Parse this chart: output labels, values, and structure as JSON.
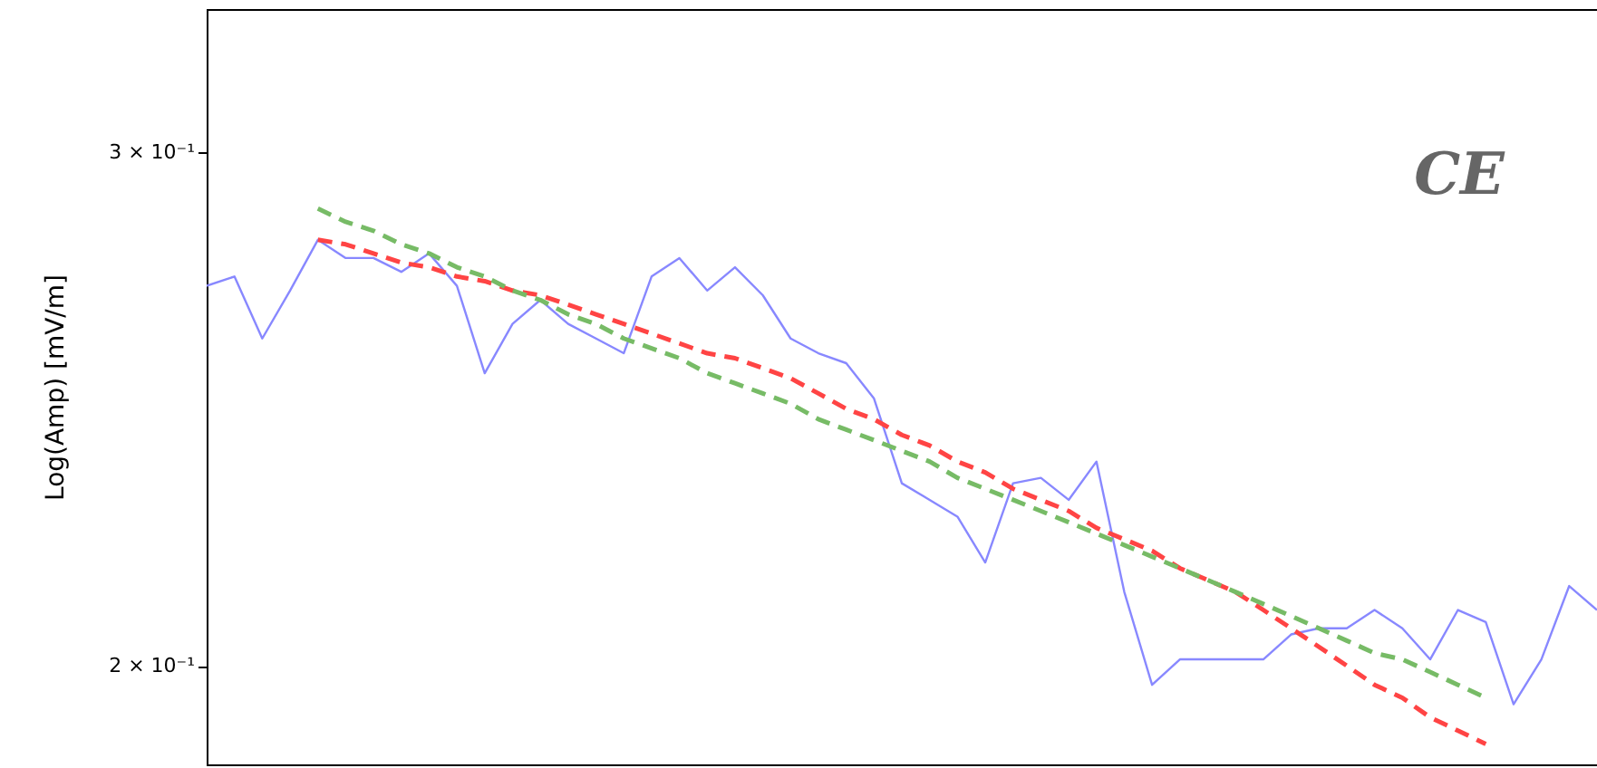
{
  "chart_data": {
    "type": "line",
    "ylabel": "Log(Amp) [mV/m]",
    "annotations": [
      "CE"
    ],
    "log": true,
    "tick_labels": "y",
    "categories": [
      null,
      null,
      null,
      null,
      null,
      null,
      null,
      null,
      null,
      null,
      null,
      null,
      null,
      null,
      null,
      null,
      null,
      null,
      null,
      null,
      null,
      null,
      null,
      null,
      null,
      null,
      null,
      null,
      null,
      null,
      null,
      null,
      null,
      null,
      null,
      null,
      null,
      null,
      null,
      null,
      null,
      null,
      null,
      null,
      null,
      null,
      null,
      null,
      null,
      null,
      null
    ],
    "ylim": [
      0.185,
      0.336
    ],
    "yticks": [
      {
        "value": 0.2,
        "label": "2 × 10⁻¹"
      },
      {
        "value": 0.3,
        "label": "3 × 10⁻¹"
      }
    ],
    "series": [
      {
        "color": "#8888ff",
        "line_style": "solid",
        "values": [
          0.27,
          0.272,
          0.259,
          0.269,
          0.28,
          0.276,
          0.276,
          0.273,
          0.277,
          0.27,
          0.252,
          0.262,
          0.267,
          0.262,
          0.259,
          0.256,
          0.272,
          0.276,
          0.269,
          0.274,
          0.268,
          0.259,
          0.256,
          0.254,
          0.247,
          0.231,
          0.228,
          0.225,
          0.217,
          0.231,
          0.232,
          0.228,
          0.235,
          0.212,
          0.197,
          0.201,
          null,
          null,
          0.201,
          0.205,
          0.206,
          0.206,
          0.209,
          0.206,
          0.201,
          0.209,
          0.207,
          0.194,
          0.201,
          0.213,
          0.209
        ]
      },
      {
        "color": "#ff4444",
        "line_style": "dashed",
        "values": [
          null,
          null,
          null,
          null,
          0.28,
          0.279,
          0.277,
          0.275,
          0.274,
          0.272,
          0.271,
          0.269,
          0.268,
          0.266,
          0.264,
          0.262,
          0.26,
          0.258,
          0.256,
          0.255,
          0.253,
          0.251,
          0.248,
          0.245,
          0.243,
          0.24,
          0.238,
          0.235,
          0.233,
          0.23,
          0.228,
          0.226,
          0.223,
          0.221,
          0.219,
          0.216,
          0.214,
          0.212,
          0.209,
          0.206,
          0.203,
          0.2,
          0.197,
          0.195,
          0.192,
          0.19,
          0.188,
          null,
          null,
          null,
          null
        ]
      },
      {
        "color": "#77bb66",
        "line_style": "dashed",
        "values": [
          null,
          null,
          null,
          null,
          0.287,
          0.284,
          0.282,
          0.279,
          0.277,
          0.274,
          0.272,
          0.269,
          0.267,
          0.264,
          0.262,
          0.259,
          0.257,
          0.255,
          0.252,
          0.25,
          0.248,
          0.246,
          0.243,
          0.241,
          0.239,
          0.237,
          0.235,
          0.232,
          0.23,
          0.228,
          0.226,
          0.224,
          0.222,
          0.22,
          0.218,
          0.216,
          0.214,
          0.212,
          0.21,
          0.208,
          0.206,
          0.204,
          0.202,
          0.201,
          0.199,
          0.197,
          0.195,
          null,
          null,
          null,
          null
        ]
      }
    ]
  }
}
